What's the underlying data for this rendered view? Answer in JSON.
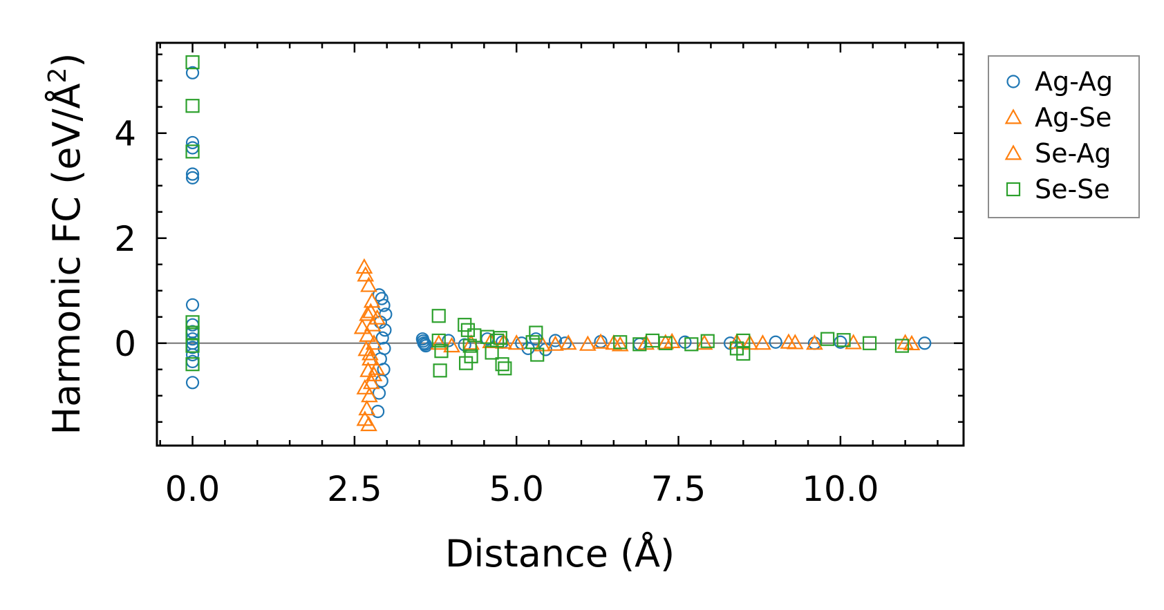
{
  "chart_data": {
    "type": "scatter",
    "title": "",
    "xlabel": "Distance (Å)",
    "ylabel_main": "Harmonic FC (eV/Å",
    "ylabel_sup": "2",
    "ylabel_close": ")",
    "xlim": [
      -0.55,
      11.9
    ],
    "ylim": [
      -1.95,
      5.72
    ],
    "xticks": [
      0.0,
      2.5,
      5.0,
      7.5,
      10.0
    ],
    "xtick_labels": [
      "0.0",
      "2.5",
      "5.0",
      "7.5",
      "10.0"
    ],
    "yticks": [
      0,
      2,
      4
    ],
    "ytick_labels": [
      "0",
      "2",
      "4"
    ],
    "reference_line_y": 0,
    "legend_position": "outside-right-top",
    "series": [
      {
        "name": "Ag-Ag",
        "marker": "circle",
        "color": "#1f77b4",
        "points": [
          [
            0,
            5.15
          ],
          [
            0,
            3.82
          ],
          [
            0,
            3.72
          ],
          [
            0,
            3.22
          ],
          [
            0,
            3.15
          ],
          [
            0,
            0.73
          ],
          [
            0,
            0.35
          ],
          [
            0,
            0.22
          ],
          [
            0,
            0.08
          ],
          [
            0,
            0.0
          ],
          [
            0,
            -0.08
          ],
          [
            0,
            -0.22
          ],
          [
            0,
            -0.35
          ],
          [
            0,
            -0.75
          ],
          [
            2.88,
            0.92
          ],
          [
            2.92,
            0.85
          ],
          [
            2.95,
            0.72
          ],
          [
            2.98,
            0.55
          ],
          [
            2.9,
            0.4
          ],
          [
            2.97,
            0.25
          ],
          [
            2.93,
            0.1
          ],
          [
            2.96,
            -0.1
          ],
          [
            2.9,
            -0.3
          ],
          [
            2.95,
            -0.5
          ],
          [
            2.92,
            -0.72
          ],
          [
            2.88,
            -0.95
          ],
          [
            2.86,
            -1.3
          ],
          [
            3.55,
            0.08
          ],
          [
            3.57,
            0.0
          ],
          [
            3.6,
            -0.05
          ],
          [
            3.56,
            0.04
          ],
          [
            3.59,
            -0.02
          ],
          [
            3.95,
            0.05
          ],
          [
            4.2,
            -0.03
          ],
          [
            4.55,
            0.08
          ],
          [
            4.78,
            0.02
          ],
          [
            5.08,
            0.0
          ],
          [
            5.18,
            -0.1
          ],
          [
            5.3,
            0.08
          ],
          [
            5.45,
            -0.12
          ],
          [
            5.6,
            0.05
          ],
          [
            5.75,
            0.0
          ],
          [
            6.3,
            0.03
          ],
          [
            6.9,
            -0.02
          ],
          [
            7.6,
            0.02
          ],
          [
            8.3,
            0.0
          ],
          [
            9.0,
            0.02
          ],
          [
            9.6,
            0.0
          ],
          [
            10.0,
            0.02
          ],
          [
            11.3,
            0.0
          ]
        ]
      },
      {
        "name": "Ag-Se",
        "marker": "triangle",
        "color": "#ff7f0e",
        "points": [
          [
            2.65,
            1.45
          ],
          [
            2.67,
            1.3
          ],
          [
            2.72,
            1.1
          ],
          [
            2.75,
            0.6
          ],
          [
            2.78,
            0.35
          ],
          [
            2.7,
            0.15
          ],
          [
            2.8,
            0.0
          ],
          [
            2.68,
            -0.12
          ],
          [
            2.74,
            -0.3
          ],
          [
            2.71,
            -0.52
          ],
          [
            2.76,
            -0.75
          ],
          [
            2.73,
            -1.0
          ],
          [
            2.69,
            -1.25
          ],
          [
            2.66,
            -1.45
          ],
          [
            2.72,
            -1.55
          ],
          [
            2.85,
            0.48
          ],
          [
            2.84,
            -0.48
          ],
          [
            3.8,
            0.0
          ],
          [
            4.0,
            -0.05
          ],
          [
            4.3,
            0.0
          ],
          [
            4.6,
            0.03
          ],
          [
            5.0,
            0.0
          ],
          [
            5.4,
            -0.03
          ],
          [
            5.8,
            0.0
          ],
          [
            6.1,
            -0.02
          ],
          [
            6.3,
            0.02
          ],
          [
            6.6,
            -0.03
          ],
          [
            7.0,
            0.0
          ],
          [
            7.4,
            0.03
          ],
          [
            7.9,
            0.0
          ],
          [
            8.4,
            0.02
          ],
          [
            8.8,
            0.0
          ],
          [
            9.2,
            0.02
          ],
          [
            9.6,
            0.0
          ],
          [
            10.2,
            0.01
          ],
          [
            11.0,
            0.01
          ]
        ]
      },
      {
        "name": "Se-Ag",
        "marker": "triangle",
        "color": "#ff7f0e",
        "points": [
          [
            2.62,
            0.3
          ],
          [
            2.7,
            0.55
          ],
          [
            2.77,
            0.8
          ],
          [
            2.74,
            -0.2
          ],
          [
            2.8,
            -0.6
          ],
          [
            2.66,
            -0.85
          ],
          [
            4.8,
            0.02
          ],
          [
            5.6,
            -0.02
          ],
          [
            6.5,
            0.0
          ],
          [
            7.3,
            0.01
          ],
          [
            8.6,
            0.0
          ],
          [
            9.3,
            0.01
          ],
          [
            11.1,
            -0.01
          ]
        ]
      },
      {
        "name": "Se-Se",
        "marker": "square",
        "color": "#2ca02c",
        "points": [
          [
            0,
            5.35
          ],
          [
            0,
            4.52
          ],
          [
            0,
            3.65
          ],
          [
            0,
            0.4
          ],
          [
            0,
            0.2
          ],
          [
            0,
            -0.05
          ],
          [
            0,
            -0.4
          ],
          [
            3.8,
            0.52
          ],
          [
            3.82,
            -0.52
          ],
          [
            3.8,
            0.05
          ],
          [
            3.84,
            -0.15
          ],
          [
            4.2,
            0.35
          ],
          [
            4.25,
            0.25
          ],
          [
            4.3,
            -0.25
          ],
          [
            4.22,
            -0.38
          ],
          [
            4.35,
            0.15
          ],
          [
            4.28,
            -0.05
          ],
          [
            4.55,
            0.12
          ],
          [
            4.62,
            -0.18
          ],
          [
            4.75,
            0.1
          ],
          [
            4.78,
            -0.4
          ],
          [
            4.82,
            -0.48
          ],
          [
            4.7,
            0.05
          ],
          [
            5.3,
            0.2
          ],
          [
            5.32,
            -0.22
          ],
          [
            5.25,
            0.02
          ],
          [
            6.6,
            0.02
          ],
          [
            6.9,
            -0.02
          ],
          [
            7.1,
            0.05
          ],
          [
            7.3,
            0.0
          ],
          [
            7.7,
            -0.02
          ],
          [
            7.95,
            0.04
          ],
          [
            8.4,
            -0.1
          ],
          [
            8.5,
            -0.2
          ],
          [
            8.5,
            0.05
          ],
          [
            9.8,
            0.08
          ],
          [
            10.05,
            0.06
          ],
          [
            10.45,
            0.0
          ],
          [
            10.95,
            -0.05
          ]
        ]
      }
    ]
  }
}
